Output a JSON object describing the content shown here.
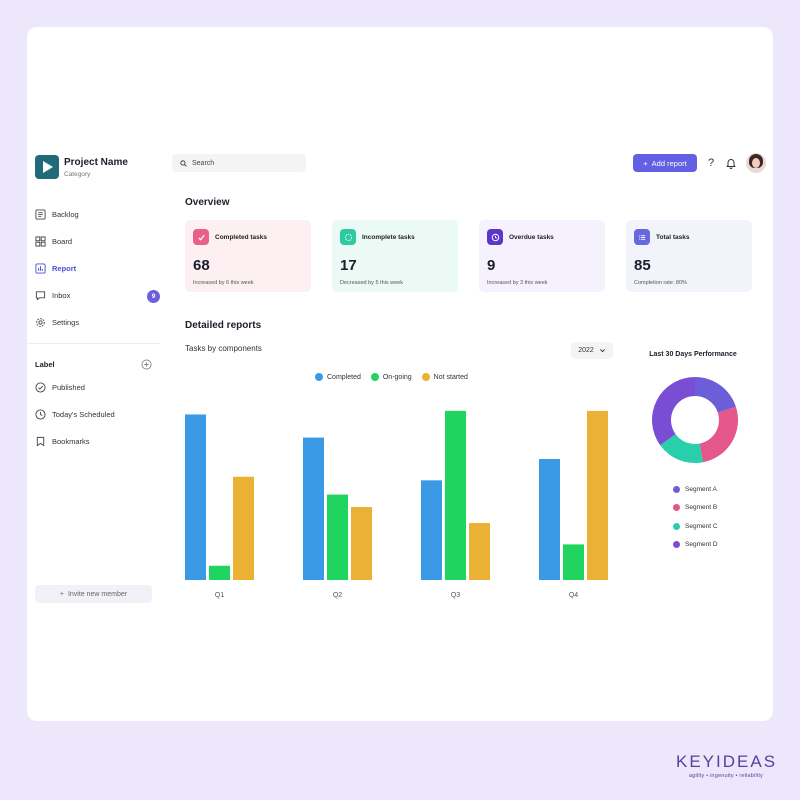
{
  "project": {
    "name": "Project Name",
    "category": "Category"
  },
  "nav": [
    {
      "label": "Backlog",
      "icon": "list-icon"
    },
    {
      "label": "Board",
      "icon": "board-icon"
    },
    {
      "label": "Report",
      "icon": "chart-icon",
      "active": true
    },
    {
      "label": "Inbox",
      "icon": "inbox-icon",
      "badge": "9"
    },
    {
      "label": "Settings",
      "icon": "gear-icon"
    }
  ],
  "labels": {
    "title": "Label",
    "items": [
      {
        "label": "Published",
        "icon": "check-circle-icon"
      },
      {
        "label": "Today's Scheduled",
        "icon": "clock-icon"
      },
      {
        "label": "Bookmarks",
        "icon": "bookmark-icon"
      }
    ]
  },
  "invite_label": "Invite new member",
  "search": {
    "placeholder": "Search"
  },
  "header": {
    "add_report_label": "Add report",
    "help_label": "?"
  },
  "overview": {
    "title": "Overview",
    "cards": [
      {
        "label": "Completed tasks",
        "value": "68",
        "sub": "Increased by 6 this week",
        "bg": "#fdf0f3",
        "icon_bg": "#e9618a",
        "icon": "check-icon"
      },
      {
        "label": "Incomplete tasks",
        "value": "17",
        "sub": "Decreased by 5 this week",
        "bg": "#ecfaf5",
        "icon_bg": "#2ec9a0",
        "icon": "dashed-circle-icon"
      },
      {
        "label": "Overdue tasks",
        "value": "9",
        "sub": "Increased by 3 this week",
        "bg": "#f5f2fd",
        "icon_bg": "#5b36c9",
        "icon": "clock-icon"
      },
      {
        "label": "Total tasks",
        "value": "85",
        "sub": "Completion rate: 80%",
        "bg": "#f3f3fc",
        "icon_bg": "#6768e0",
        "icon": "list-icon"
      }
    ]
  },
  "detailed": {
    "title": "Detailed reports",
    "subtitle": "Tasks by components",
    "year": "2022"
  },
  "chart_data": {
    "type": "bar",
    "categories": [
      "Q1",
      "Q2",
      "Q3",
      "Q4"
    ],
    "series": [
      {
        "name": "Completed",
        "color": "#3b9ae5",
        "values": [
          93,
          80,
          56,
          68
        ]
      },
      {
        "name": "On-going",
        "color": "#20d460",
        "values": [
          8,
          48,
          95,
          20
        ]
      },
      {
        "name": "Not started",
        "color": "#ebb135",
        "values": [
          58,
          41,
          32,
          95
        ]
      }
    ],
    "ylim": [
      0,
      100
    ]
  },
  "donut": {
    "title": "Last 30 Days Performance",
    "type": "pie",
    "segments": [
      {
        "name": "Segment A",
        "value": 20,
        "color": "#6c5ed9"
      },
      {
        "name": "Segment B",
        "value": 27,
        "color": "#e3578a"
      },
      {
        "name": "Segment C",
        "value": 18,
        "color": "#28cfaa"
      },
      {
        "name": "Segment D",
        "value": 35,
        "color": "#7a4ed4"
      }
    ]
  },
  "brand": {
    "name": "KEYIDEAS",
    "tagline": "agility • ingenuity • reliability"
  }
}
